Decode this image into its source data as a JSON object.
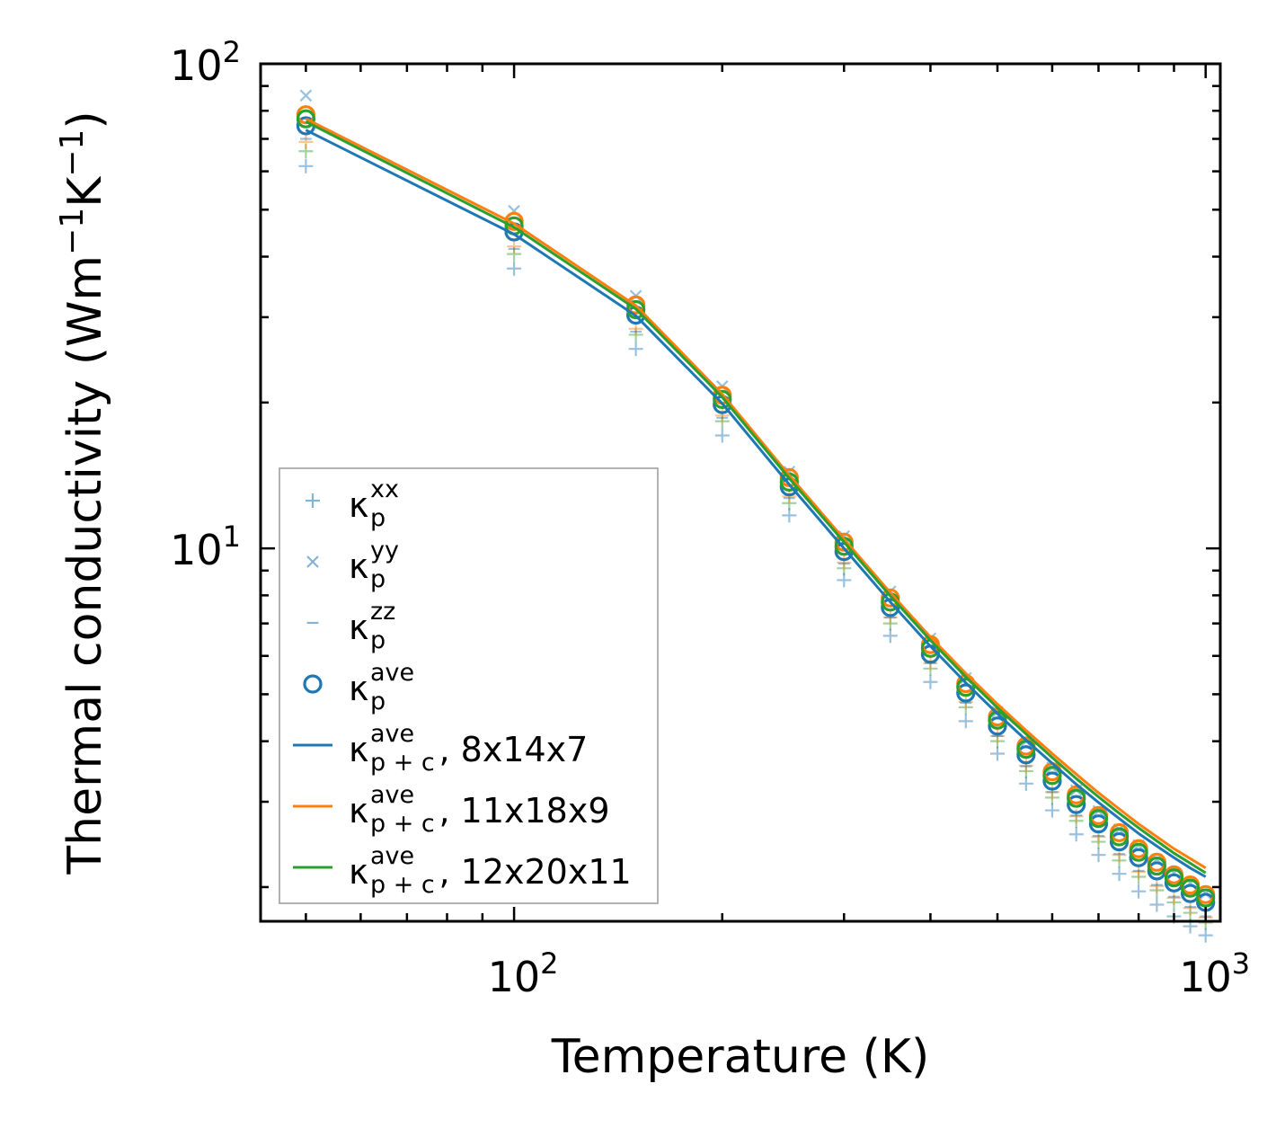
{
  "chart_data": {
    "type": "line",
    "title": "",
    "xlabel": "Temperature (K)",
    "ylabel": "Thermal conductivity (Wm",
    "ylabel_sup1": "−1",
    "ylabel_mid": "K",
    "ylabel_sup2": "−1",
    "ylabel_end": ")",
    "xscale": "log",
    "yscale": "log",
    "xlim": [
      43,
      1050
    ],
    "ylim": [
      1.7,
      100
    ],
    "x_ticks": [
      {
        "value": 100,
        "base": "10",
        "exp": "2"
      },
      {
        "value": 1000,
        "base": "10",
        "exp": "3"
      }
    ],
    "y_ticks": [
      {
        "value": 10,
        "base": "10",
        "exp": "1"
      },
      {
        "value": 100,
        "base": "10",
        "exp": "2"
      }
    ],
    "x": [
      50,
      100,
      150,
      200,
      250,
      300,
      350,
      400,
      450,
      500,
      550,
      600,
      650,
      700,
      750,
      800,
      850,
      900,
      950,
      1000
    ],
    "markers": [
      {
        "name": "κp xx",
        "marker": "plus",
        "color": "#1f77b4",
        "values": [
          61.5,
          37.8,
          25.8,
          17.1,
          11.7,
          8.6,
          6.6,
          5.3,
          4.4,
          3.77,
          3.27,
          2.88,
          2.57,
          2.33,
          2.13,
          1.96,
          1.84,
          1.74,
          1.66,
          1.59
        ]
      },
      {
        "name": "κp yy",
        "marker": "cross",
        "color": "#1f77b4",
        "values": [
          86,
          49.7,
          33.2,
          21.6,
          14.4,
          10.6,
          8.15,
          6.52,
          5.4,
          4.6,
          4.0,
          3.53,
          3.17,
          2.87,
          2.63,
          2.44,
          2.28,
          2.14,
          2.04,
          1.94
        ]
      },
      {
        "name": "κp zz",
        "marker": "dash",
        "color": "#1f77b4",
        "values": [
          70,
          41.5,
          28.0,
          18.6,
          12.7,
          9.3,
          7.2,
          5.8,
          4.8,
          4.1,
          3.55,
          3.14,
          2.81,
          2.55,
          2.34,
          2.16,
          2.02,
          1.91,
          1.82,
          1.74
        ]
      }
    ],
    "markers_green": [
      {
        "name": "κp xx (12x20x11)",
        "marker": "plus",
        "color": "#2ca02c",
        "values": [
          66,
          40.5,
          27.6,
          18.3,
          12.4,
          9.1,
          7.0,
          5.65,
          4.7,
          4.0,
          3.47,
          3.06,
          2.74,
          2.48,
          2.27,
          2.1,
          1.97,
          1.86,
          1.77,
          1.69
        ]
      }
    ],
    "markers_orange": [
      {
        "name": "κp xx (11x18x9)",
        "marker": "plus",
        "color": "#ff7f0e",
        "values": [
          69,
          42,
          28.4,
          18.8,
          12.8,
          9.35,
          7.2,
          5.8,
          4.82,
          4.1,
          3.56,
          3.14,
          2.8,
          2.54,
          2.33,
          2.15,
          2.01,
          1.9,
          1.81,
          1.73
        ]
      }
    ],
    "ave_markers": [
      {
        "name": "κp ave 8x14x7",
        "color": "#1f77b4",
        "values": [
          74.5,
          45.0,
          30.3,
          19.8,
          13.4,
          9.85,
          7.55,
          6.05,
          5.03,
          4.3,
          3.75,
          3.31,
          2.96,
          2.7,
          2.48,
          2.3,
          2.16,
          2.04,
          1.94,
          1.86
        ]
      },
      {
        "name": "κp ave 11x18x9",
        "color": "#ff7f0e",
        "values": [
          78.5,
          47.3,
          31.8,
          20.7,
          14.0,
          10.3,
          7.9,
          6.33,
          5.26,
          4.49,
          3.91,
          3.46,
          3.1,
          2.81,
          2.59,
          2.4,
          2.25,
          2.12,
          2.02,
          1.93
        ]
      },
      {
        "name": "κp ave 12x20x11",
        "color": "#2ca02c",
        "values": [
          77,
          46.3,
          31.1,
          20.3,
          13.7,
          10.1,
          7.75,
          6.22,
          5.17,
          4.42,
          3.85,
          3.4,
          3.05,
          2.77,
          2.54,
          2.36,
          2.21,
          2.09,
          1.99,
          1.9
        ]
      }
    ],
    "series": [
      {
        "name": "8x14x7",
        "color": "#1f77b4",
        "values": [
          73.0,
          44.5,
          30.2,
          19.9,
          13.55,
          10.0,
          7.75,
          6.28,
          5.28,
          4.56,
          4.02,
          3.6,
          3.26,
          2.99,
          2.77,
          2.58,
          2.43,
          2.3,
          2.19,
          2.1
        ]
      },
      {
        "name": "11x18x9",
        "color": "#ff7f0e",
        "values": [
          77.0,
          46.8,
          31.7,
          20.8,
          14.15,
          10.45,
          8.1,
          6.56,
          5.52,
          4.77,
          4.21,
          3.77,
          3.42,
          3.13,
          2.9,
          2.7,
          2.54,
          2.4,
          2.29,
          2.19
        ]
      },
      {
        "name": "12x20x11",
        "color": "#2ca02c",
        "values": [
          76.0,
          46.0,
          31.2,
          20.5,
          13.95,
          10.3,
          7.98,
          6.46,
          5.43,
          4.69,
          4.14,
          3.7,
          3.35,
          3.07,
          2.84,
          2.65,
          2.49,
          2.35,
          2.24,
          2.14
        ]
      }
    ],
    "legend_position": "lower-left",
    "legend": [
      {
        "symbol": "plus",
        "color": "#1f77b4",
        "sym": "κ",
        "sub": "p",
        "sup": "xx",
        "suffix": ""
      },
      {
        "symbol": "cross",
        "color": "#1f77b4",
        "sym": "κ",
        "sub": "p",
        "sup": "yy",
        "suffix": ""
      },
      {
        "symbol": "dash",
        "color": "#1f77b4",
        "sym": "κ",
        "sub": "p",
        "sup": "zz",
        "suffix": ""
      },
      {
        "symbol": "circle",
        "color": "#1f77b4",
        "sym": "κ",
        "sub": "p",
        "sup": "ave",
        "suffix": ""
      },
      {
        "symbol": "line",
        "color": "#1f77b4",
        "sym": "κ",
        "sub": "p + c",
        "sup": "ave",
        "suffix": ", 8x14x7"
      },
      {
        "symbol": "line",
        "color": "#ff7f0e",
        "sym": "κ",
        "sub": "p + c",
        "sup": "ave",
        "suffix": ", 11x18x9"
      },
      {
        "symbol": "line",
        "color": "#2ca02c",
        "sym": "κ",
        "sub": "p + c",
        "sup": "ave",
        "suffix": ", 12x20x11"
      }
    ]
  }
}
